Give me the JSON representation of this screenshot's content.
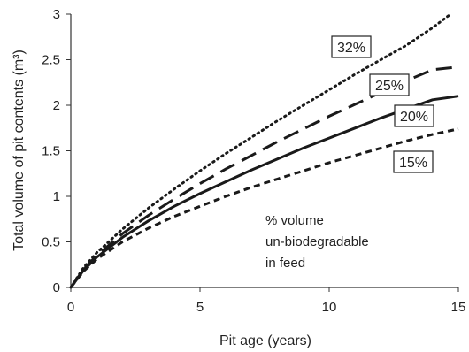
{
  "chart_data": {
    "type": "line",
    "xlabel": "Pit age (years)",
    "ylabel": "Total volume of pit contents (m³)",
    "xlim": [
      0,
      15
    ],
    "ylim": [
      0,
      3
    ],
    "x_ticks": [
      "0",
      "5",
      "10",
      "15"
    ],
    "y_ticks": [
      "0",
      "0.5",
      "1",
      "1.5",
      "2",
      "2.5",
      "3"
    ],
    "grid": false,
    "annotation": [
      "% volume",
      "un-biodegradable",
      "in feed"
    ],
    "series": [
      {
        "label": "32%",
        "line_style": "dotted",
        "x": [
          0,
          0.5,
          1,
          2,
          3,
          4,
          5,
          6,
          7,
          8,
          9,
          10,
          11,
          12,
          13,
          14,
          14.7
        ],
        "y": [
          0,
          0.22,
          0.38,
          0.64,
          0.87,
          1.08,
          1.28,
          1.47,
          1.65,
          1.83,
          2.0,
          2.17,
          2.34,
          2.5,
          2.66,
          2.85,
          3.0
        ]
      },
      {
        "label": "25%",
        "line_style": "long-dashed",
        "x": [
          0,
          0.5,
          1,
          2,
          3,
          4,
          5,
          6,
          7,
          8,
          9,
          10,
          11,
          12,
          13,
          14,
          15
        ],
        "y": [
          0,
          0.2,
          0.35,
          0.59,
          0.79,
          0.97,
          1.14,
          1.3,
          1.45,
          1.6,
          1.74,
          1.88,
          2.01,
          2.14,
          2.27,
          2.39,
          2.42
        ]
      },
      {
        "label": "20%",
        "line_style": "solid",
        "x": [
          0,
          0.5,
          1,
          2,
          3,
          4,
          5,
          6,
          7,
          8,
          9,
          10,
          11,
          12,
          13,
          14,
          15
        ],
        "y": [
          0,
          0.19,
          0.33,
          0.55,
          0.73,
          0.89,
          1.03,
          1.16,
          1.29,
          1.41,
          1.53,
          1.64,
          1.75,
          1.86,
          1.96,
          2.06,
          2.1
        ]
      },
      {
        "label": "15%",
        "line_style": "short-dashed",
        "x": [
          0,
          0.5,
          1,
          2,
          3,
          4,
          5,
          6,
          7,
          8,
          9,
          10,
          11,
          12,
          13,
          14,
          15
        ],
        "y": [
          0,
          0.18,
          0.31,
          0.5,
          0.65,
          0.78,
          0.89,
          1.0,
          1.1,
          1.19,
          1.28,
          1.37,
          1.45,
          1.53,
          1.61,
          1.68,
          1.74
        ]
      }
    ]
  }
}
